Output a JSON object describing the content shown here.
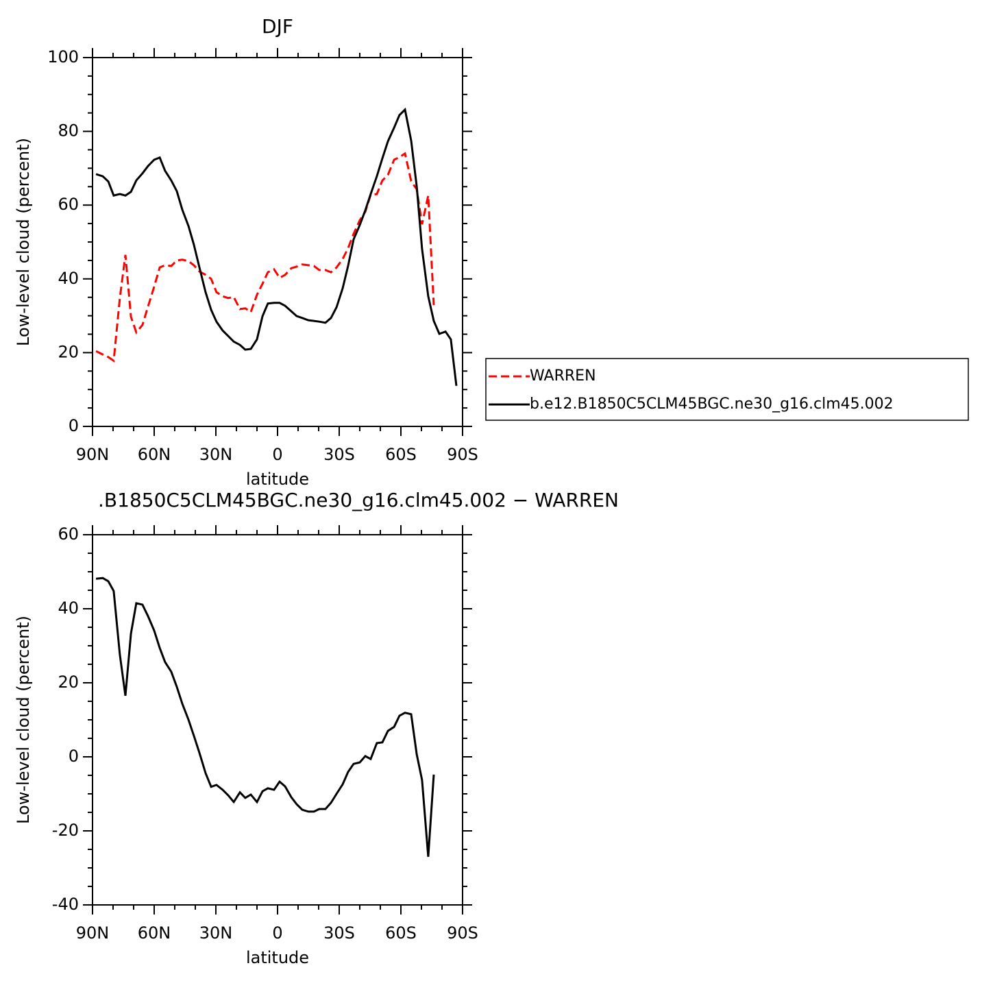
{
  "chart_data": [
    {
      "type": "line",
      "title": "DJF",
      "xlabel": "latitude",
      "ylabel": "Low-level cloud (percent)",
      "xlim": [
        90,
        -90
      ],
      "xticks": [
        {
          "value": 90,
          "label": "90N"
        },
        {
          "value": 60,
          "label": "60N"
        },
        {
          "value": 30,
          "label": "30N"
        },
        0,
        {
          "value": -30,
          "label": "30S"
        },
        {
          "value": -60,
          "label": "60S"
        },
        {
          "value": -90,
          "label": "90S"
        }
      ],
      "ylim": [
        0,
        100
      ],
      "yticks": [
        0,
        20,
        40,
        60,
        80,
        100
      ],
      "legend": "right",
      "x": [
        88.3,
        85,
        82.3,
        79.7,
        76.7,
        74,
        71.3,
        68.7,
        65.7,
        63,
        60,
        57.3,
        54.7,
        51.7,
        49,
        46.3,
        43.3,
        40.7,
        38,
        35,
        32.3,
        29.7,
        26.7,
        24,
        21.3,
        18.3,
        15.7,
        13,
        10,
        7.3,
        4.7,
        1.7,
        -1,
        -3.7,
        -6.7,
        -9.3,
        -12,
        -15,
        -17.7,
        -20.3,
        -23.3,
        -26,
        -28.7,
        -31.7,
        -34.3,
        -37,
        -40,
        -42.7,
        -45.3,
        -48.3,
        -51,
        -53.7,
        -56.7,
        -59.3,
        -62,
        -65,
        -67.7,
        -70.3,
        -73.3,
        -76,
        -78.7,
        -81.7,
        -84.3,
        -87
      ],
      "series": [
        {
          "name": "WARREN",
          "color": "#ff0000",
          "style": "dashed",
          "values": [
            20.4,
            19.5,
            18.8,
            17.8,
            34.8,
            46.5,
            29.7,
            25.5,
            27.5,
            32.5,
            37.9,
            43.1,
            43.7,
            43.5,
            45.0,
            45.2,
            44.8,
            43.7,
            42.0,
            41.1,
            40.0,
            36.4,
            35.3,
            34.8,
            35.1,
            31.8,
            32.0,
            31.0,
            35.7,
            38.7,
            41.8,
            42.6,
            40.3,
            41.1,
            42.9,
            43.3,
            43.9,
            43.7,
            43.5,
            42.4,
            42.4,
            41.8,
            43.1,
            45.4,
            48.3,
            52.2,
            55.9,
            58.2,
            62.8,
            63.0,
            66.7,
            68.2,
            72.3,
            73.0,
            74.0,
            66.5,
            64.3,
            54.8,
            62.6,
            32.9,
            null,
            null,
            null,
            null
          ]
        },
        {
          "name": "b.e12.B1850C5CLM45BGC.ne30_g16.clm45.002",
          "color": "#000000",
          "style": "solid",
          "values": [
            68.4,
            67.8,
            66.4,
            62.6,
            63.0,
            62.6,
            63.6,
            66.7,
            68.6,
            70.6,
            72.3,
            72.9,
            69.3,
            66.7,
            63.8,
            58.7,
            54.3,
            49.3,
            43.1,
            36.4,
            31.6,
            28.4,
            26.0,
            24.5,
            23.0,
            22.1,
            20.8,
            21.0,
            23.6,
            29.9,
            33.3,
            33.5,
            33.5,
            32.7,
            31.2,
            29.9,
            29.4,
            28.8,
            28.6,
            28.4,
            28.1,
            29.4,
            32.3,
            37.5,
            43.5,
            50.7,
            54.6,
            58.6,
            63.0,
            67.8,
            72.7,
            77.3,
            81.0,
            84.4,
            85.9,
            77.5,
            65.1,
            48.1,
            35.3,
            28.6,
            25.1,
            25.7,
            23.6,
            11.0
          ]
        }
      ]
    },
    {
      "type": "line",
      "title": ".B1850C5CLM45BGC.ne30_g16.clm45.002 − WARREN",
      "xlabel": "latitude",
      "ylabel": "Low-level cloud (percent)",
      "xlim": [
        90,
        -90
      ],
      "xticks": [
        {
          "value": 90,
          "label": "90N"
        },
        {
          "value": 60,
          "label": "60N"
        },
        {
          "value": 30,
          "label": "30N"
        },
        0,
        {
          "value": -30,
          "label": "30S"
        },
        {
          "value": -60,
          "label": "60S"
        },
        {
          "value": -90,
          "label": "90S"
        }
      ],
      "ylim": [
        -40,
        60
      ],
      "yticks": [
        -40,
        -20,
        0,
        20,
        40,
        60
      ],
      "x": [
        88.3,
        85,
        82.3,
        79.7,
        76.7,
        74,
        71.3,
        68.7,
        65.7,
        63,
        60,
        57.3,
        54.7,
        51.7,
        49,
        46.3,
        43.3,
        40.7,
        38,
        35,
        32.3,
        29.7,
        26.7,
        24,
        21.3,
        18.3,
        15.7,
        13,
        10,
        7.3,
        4.7,
        1.7,
        -1,
        -3.7,
        -6.7,
        -9.3,
        -12,
        -15,
        -17.7,
        -20.3,
        -23.3,
        -26,
        -28.7,
        -31.7,
        -34.3,
        -37,
        -40,
        -42.7,
        -45.3,
        -48.3,
        -51,
        -53.7,
        -56.7,
        -59.3,
        -62,
        -65,
        -67.7,
        -70.3,
        -73.3,
        -76,
        -78.7,
        -81.7,
        -84.3,
        -87
      ],
      "series": [
        {
          "color": "#000000",
          "style": "solid",
          "values": [
            48.1,
            48.3,
            47.4,
            44.8,
            27.6,
            16.5,
            33.3,
            41.5,
            41.1,
            38.0,
            34.1,
            29.4,
            25.6,
            23.0,
            18.9,
            14.3,
            10.0,
            5.7,
            1.1,
            -4.4,
            -8.1,
            -7.6,
            -8.9,
            -10.4,
            -12.2,
            -9.6,
            -11.1,
            -10.2,
            -12.2,
            -9.3,
            -8.5,
            -8.9,
            -6.7,
            -8.0,
            -10.9,
            -12.8,
            -14.3,
            -14.8,
            -14.8,
            -14.1,
            -14.1,
            -12.4,
            -10.0,
            -7.4,
            -4.1,
            -1.9,
            -1.5,
            0.2,
            -0.6,
            3.7,
            3.9,
            7.0,
            8.1,
            11.1,
            11.9,
            11.5,
            0.7,
            -6.3,
            -27.0,
            -4.8,
            null,
            null,
            null,
            null
          ]
        }
      ]
    }
  ]
}
